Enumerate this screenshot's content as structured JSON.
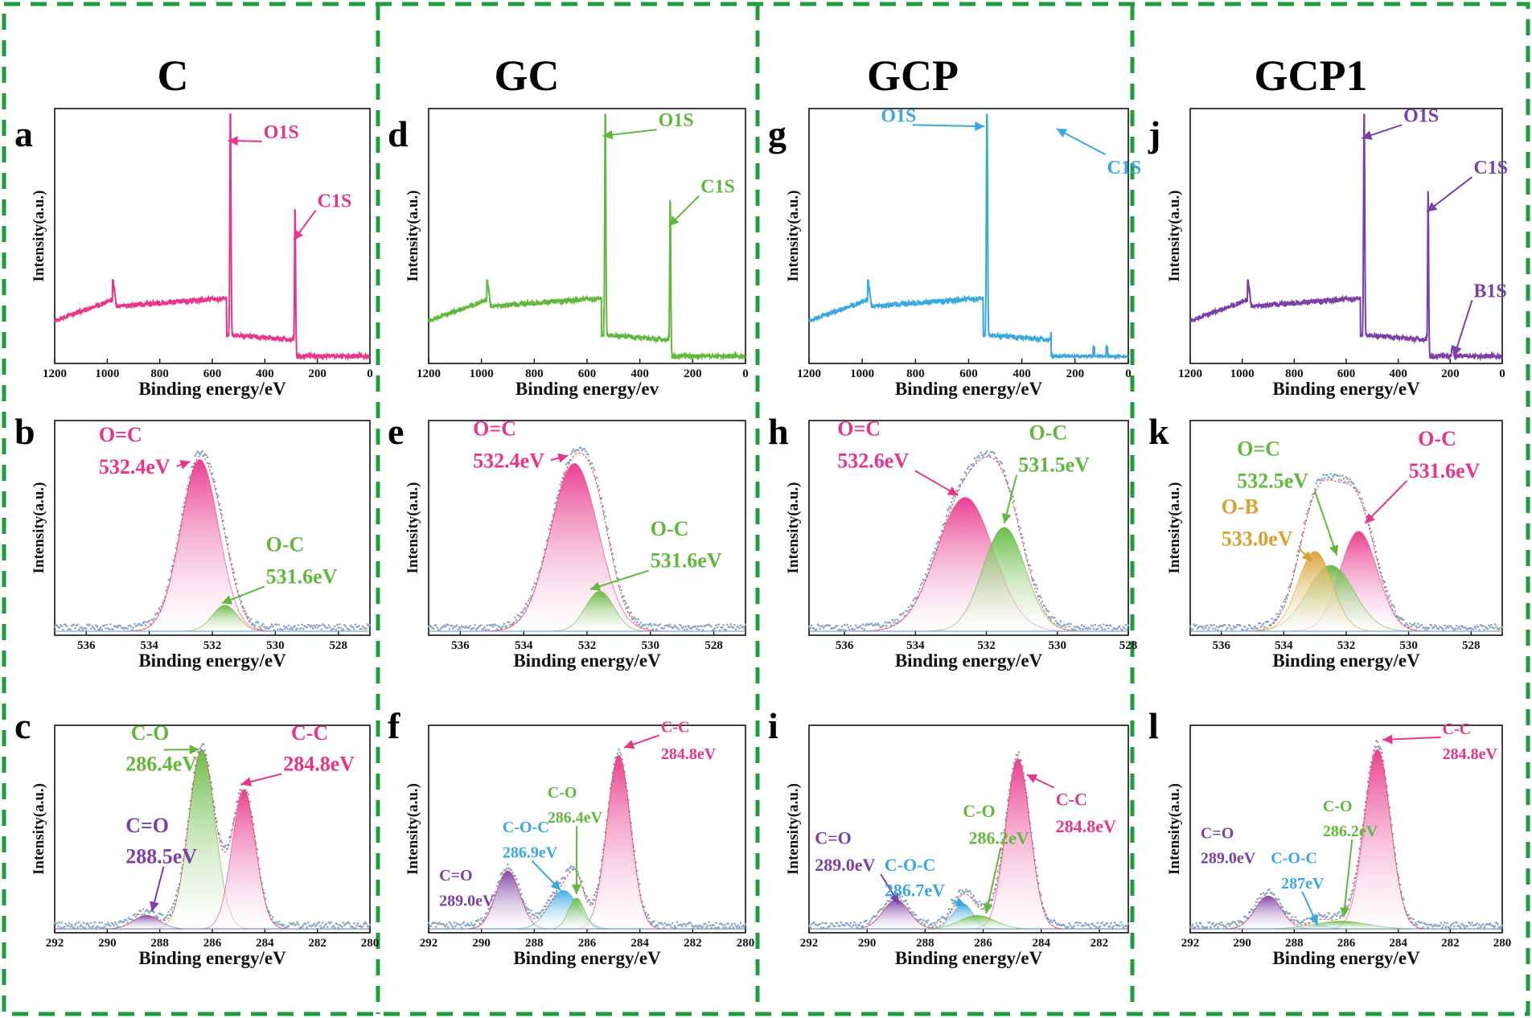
{
  "columns": [
    {
      "title": "C"
    },
    {
      "title": "GC"
    },
    {
      "title": "GCP"
    },
    {
      "title": "GCP1"
    }
  ],
  "colors": {
    "pink": "#e8358a",
    "green": "#62b83c",
    "blue": "#3aa8e0",
    "purple": "#7b3fa6",
    "orange": "#d9a032",
    "frame": "#1e9d3c",
    "exp": "#88a7c9"
  },
  "chart_data": [
    {
      "panel": "a",
      "type": "line",
      "region": "survey",
      "title": "",
      "xlabel": "Binding energy/eV",
      "ylabel": "Intensity(a.u.)",
      "xlim": [
        1200,
        0
      ],
      "xticks": [
        1200,
        1000,
        800,
        600,
        400,
        200,
        0
      ],
      "line_color": "pink",
      "peaks": [
        {
          "name": "O1S",
          "x": 531
        },
        {
          "name": "C1S",
          "x": 285
        }
      ],
      "labels": [
        {
          "text": "O1S",
          "color": "pink",
          "x": 405,
          "y": 0.95,
          "tx": 540,
          "ty": 0.94,
          "size": 24
        },
        {
          "text": "C1S",
          "color": "pink",
          "x": 200,
          "y": 0.66,
          "tx": 290,
          "ty": 0.52,
          "size": 24
        }
      ]
    },
    {
      "panel": "b",
      "type": "area",
      "region": "O",
      "title": "",
      "xlabel": "Binding energy/eV",
      "ylabel": "Intensity(a.u.)",
      "xlim": [
        537,
        527
      ],
      "xticks": [
        536,
        534,
        532,
        530,
        528
      ],
      "components": [
        {
          "name": "O=C",
          "center": 532.4,
          "height": 0.86,
          "width": 0.6,
          "color": "pink"
        },
        {
          "name": "O-C",
          "center": 531.6,
          "height": 0.13,
          "width": 0.4,
          "color": "green"
        }
      ],
      "labels": [
        {
          "text": "O=C",
          "color": "pink",
          "x": 535.6,
          "y": 0.97,
          "size": 26
        },
        {
          "text": "532.4eV",
          "color": "pink",
          "x": 535.6,
          "y": 0.81,
          "tx": 532.7,
          "ty": 0.87,
          "size": 26
        },
        {
          "text": "O-C",
          "color": "green",
          "x": 530.3,
          "y": 0.42,
          "size": 26
        },
        {
          "text": "531.6eV",
          "color": "green",
          "x": 530.3,
          "y": 0.26,
          "tx": 531.7,
          "ty": 0.16,
          "size": 26
        }
      ]
    },
    {
      "panel": "c",
      "type": "area",
      "region": "C",
      "title": "",
      "xlabel": "Binding energy/eV",
      "ylabel": "Intensity(a.u.)",
      "xlim": [
        292,
        280
      ],
      "xticks": [
        292,
        290,
        288,
        286,
        284,
        282,
        280
      ],
      "components": [
        {
          "name": "C-O",
          "center": 286.4,
          "height": 0.93,
          "width": 0.5,
          "color": "green"
        },
        {
          "name": "C-C",
          "center": 284.8,
          "height": 0.72,
          "width": 0.45,
          "color": "pink"
        },
        {
          "name": "C=O",
          "center": 288.5,
          "height": 0.07,
          "width": 0.5,
          "color": "purple"
        }
      ],
      "labels": [
        {
          "text": "C-O",
          "color": "green",
          "x": 289.1,
          "y": 1.0,
          "size": 26
        },
        {
          "text": "286.4eV",
          "color": "green",
          "x": 289.3,
          "y": 0.84,
          "tx": 286.5,
          "ty": 0.95,
          "size": 26
        },
        {
          "text": "C-C",
          "color": "pink",
          "x": 283.0,
          "y": 1.0,
          "size": 26
        },
        {
          "text": "284.8eV",
          "color": "pink",
          "x": 283.3,
          "y": 0.84,
          "tx": 284.9,
          "ty": 0.77,
          "size": 26
        },
        {
          "text": "C=O",
          "color": "purple",
          "x": 289.3,
          "y": 0.52,
          "size": 26
        },
        {
          "text": "288.5eV",
          "color": "purple",
          "x": 289.3,
          "y": 0.36,
          "tx": 288.3,
          "ty": 0.11,
          "size": 26
        }
      ]
    },
    {
      "panel": "d",
      "type": "line",
      "region": "survey",
      "title": "",
      "xlabel": "Binding energy/ev",
      "ylabel": "Intensity(a.u.)",
      "xlim": [
        1200,
        0
      ],
      "xticks": [
        1200,
        1000,
        800,
        600,
        400,
        200,
        0
      ],
      "line_color": "green",
      "peaks": [
        {
          "name": "O1S",
          "x": 531
        },
        {
          "name": "C1S",
          "x": 285
        }
      ],
      "labels": [
        {
          "text": "O1S",
          "color": "green",
          "x": 330,
          "y": 1.0,
          "tx": 540,
          "ty": 0.96,
          "size": 24
        },
        {
          "text": "C1S",
          "color": "green",
          "x": 170,
          "y": 0.72,
          "tx": 290,
          "ty": 0.58,
          "size": 24
        }
      ]
    },
    {
      "panel": "e",
      "type": "area",
      "region": "O",
      "title": "",
      "xlabel": "Binding energy/eV",
      "ylabel": "Intensity(a.u.)",
      "xlim": [
        537,
        527
      ],
      "xticks": [
        536,
        534,
        532,
        530,
        528
      ],
      "components": [
        {
          "name": "O=C",
          "center": 532.4,
          "height": 0.84,
          "width": 0.75,
          "color": "pink"
        },
        {
          "name": "O-C",
          "center": 531.6,
          "height": 0.2,
          "width": 0.45,
          "color": "green"
        }
      ],
      "labels": [
        {
          "text": "O=C",
          "color": "pink",
          "x": 535.6,
          "y": 1.0,
          "size": 26
        },
        {
          "text": "532.4eV",
          "color": "pink",
          "x": 535.6,
          "y": 0.84,
          "tx": 532.6,
          "ty": 0.9,
          "size": 26
        },
        {
          "text": "O-C",
          "color": "green",
          "x": 530.0,
          "y": 0.5,
          "size": 26
        },
        {
          "text": "531.6eV",
          "color": "green",
          "x": 530.0,
          "y": 0.34,
          "tx": 531.9,
          "ty": 0.23,
          "size": 26
        }
      ]
    },
    {
      "panel": "f",
      "type": "area",
      "region": "C",
      "title": "",
      "xlabel": "Binding energy/eV",
      "ylabel": "Intensity(a.u.)",
      "xlim": [
        292,
        280
      ],
      "xticks": [
        292,
        290,
        288,
        286,
        284,
        282,
        280
      ],
      "components": [
        {
          "name": "C-C",
          "center": 284.8,
          "height": 0.9,
          "width": 0.45,
          "color": "pink"
        },
        {
          "name": "C=O",
          "center": 289.0,
          "height": 0.3,
          "width": 0.45,
          "color": "purple"
        },
        {
          "name": "C-O-C",
          "center": 286.9,
          "height": 0.2,
          "width": 0.55,
          "color": "blue"
        },
        {
          "name": "C-O",
          "center": 286.4,
          "height": 0.16,
          "width": 0.3,
          "color": "green"
        }
      ],
      "labels": [
        {
          "text": "C-C",
          "color": "pink",
          "x": 283.2,
          "y": 1.04,
          "tx": 284.6,
          "ty": 0.96,
          "size": 20
        },
        {
          "text": "284.8eV",
          "color": "pink",
          "x": 283.2,
          "y": 0.9,
          "size": 20
        },
        {
          "text": "C-O",
          "color": "green",
          "x": 287.5,
          "y": 0.7,
          "size": 20
        },
        {
          "text": "286.4eV",
          "color": "green",
          "x": 287.5,
          "y": 0.57,
          "tx": 286.4,
          "ty": 0.2,
          "size": 20
        },
        {
          "text": "C-O-C",
          "color": "blue",
          "x": 289.2,
          "y": 0.52,
          "size": 20
        },
        {
          "text": "286.9eV",
          "color": "blue",
          "x": 289.2,
          "y": 0.39,
          "tx": 287.0,
          "ty": 0.22,
          "size": 20
        },
        {
          "text": "C=O",
          "color": "purple",
          "x": 291.6,
          "y": 0.27,
          "size": 20
        },
        {
          "text": "289.0eV",
          "color": "purple",
          "x": 291.6,
          "y": 0.14,
          "size": 20
        }
      ]
    },
    {
      "panel": "g",
      "type": "line",
      "region": "survey",
      "title": "",
      "xlabel": "Binding energy/eV",
      "ylabel": "Intensity(a.u.)",
      "xlim": [
        1200,
        0
      ],
      "xticks": [
        1200,
        1000,
        800,
        600,
        400,
        200,
        0
      ],
      "line_color": "blue",
      "peaks": [
        {
          "name": "O1S",
          "x": 531
        },
        {
          "name": "C1S",
          "x": 285
        }
      ],
      "labels": [
        {
          "text": "O1S",
          "color": "blue",
          "x": 930,
          "y": 1.02,
          "tx": 540,
          "ty": 1.0,
          "size": 24
        },
        {
          "text": "C1S",
          "color": "blue",
          "x": 80,
          "y": 0.8,
          "tx": 270,
          "ty": 0.99,
          "size": 24
        }
      ]
    },
    {
      "panel": "h",
      "type": "area",
      "region": "O",
      "title": "",
      "xlabel": "Binding energy/eV",
      "ylabel": "Intensity(a.u.)",
      "xlim": [
        537,
        528
      ],
      "xticks": [
        536,
        534,
        532,
        530,
        528
      ],
      "components": [
        {
          "name": "O=C",
          "center": 532.6,
          "height": 0.67,
          "width": 0.8,
          "color": "pink"
        },
        {
          "name": "O-C",
          "center": 531.5,
          "height": 0.52,
          "width": 0.6,
          "color": "green"
        }
      ],
      "labels": [
        {
          "text": "O=C",
          "color": "pink",
          "x": 536.2,
          "y": 1.0,
          "size": 26
        },
        {
          "text": "532.6eV",
          "color": "pink",
          "x": 536.2,
          "y": 0.84,
          "tx": 532.8,
          "ty": 0.7,
          "size": 26
        },
        {
          "text": "O-C",
          "color": "green",
          "x": 530.8,
          "y": 0.98,
          "size": 26
        },
        {
          "text": "531.5eV",
          "color": "green",
          "x": 531.1,
          "y": 0.82,
          "tx": 531.5,
          "ty": 0.56,
          "size": 26
        }
      ]
    },
    {
      "panel": "i",
      "type": "area",
      "region": "C",
      "title": "",
      "xlabel": "Binding energy/eV",
      "ylabel": "Intensity(a.u.)",
      "xlim": [
        292,
        281
      ],
      "xticks": [
        292,
        290,
        288,
        286,
        284,
        282
      ],
      "components": [
        {
          "name": "C-C",
          "center": 284.8,
          "height": 0.88,
          "width": 0.42,
          "color": "pink"
        },
        {
          "name": "C=O",
          "center": 289.0,
          "height": 0.15,
          "width": 0.45,
          "color": "purple"
        },
        {
          "name": "C-O-C",
          "center": 286.7,
          "height": 0.13,
          "width": 0.35,
          "color": "blue"
        },
        {
          "name": "C-O",
          "center": 286.2,
          "height": 0.07,
          "width": 0.6,
          "color": "green"
        }
      ],
      "labels": [
        {
          "text": "C-C",
          "color": "pink",
          "x": 283.5,
          "y": 0.66,
          "tx": 284.5,
          "ty": 0.82,
          "size": 22
        },
        {
          "text": "284.8eV",
          "color": "pink",
          "x": 283.5,
          "y": 0.52,
          "size": 22
        },
        {
          "text": "C-O",
          "color": "green",
          "x": 286.7,
          "y": 0.6,
          "size": 22
        },
        {
          "text": "286.2eV",
          "color": "green",
          "x": 286.5,
          "y": 0.46,
          "tx": 285.9,
          "ty": 0.1,
          "size": 22
        },
        {
          "text": "C=O",
          "color": "purple",
          "x": 291.8,
          "y": 0.46,
          "size": 22
        },
        {
          "text": "289.0eV",
          "color": "purple",
          "x": 291.8,
          "y": 0.32,
          "tx": 288.9,
          "ty": 0.15,
          "size": 22
        },
        {
          "text": "C-O-C",
          "color": "blue",
          "x": 289.4,
          "y": 0.32,
          "size": 22
        },
        {
          "text": "286.7eV",
          "color": "blue",
          "x": 289.4,
          "y": 0.19,
          "tx": 286.6,
          "ty": 0.14,
          "size": 22
        }
      ]
    },
    {
      "panel": "j",
      "type": "line",
      "region": "survey",
      "title": "",
      "xlabel": "Binding energy/eV",
      "ylabel": "Intensity(a.u.)",
      "xlim": [
        1200,
        0
      ],
      "xticks": [
        1200,
        1000,
        800,
        600,
        400,
        200,
        0
      ],
      "line_color": "purple",
      "peaks": [
        {
          "name": "O1S",
          "x": 531
        },
        {
          "name": "C1S",
          "x": 285
        },
        {
          "name": "B1S",
          "x": 191
        }
      ],
      "labels": [
        {
          "text": "O1S",
          "color": "purple",
          "x": 380,
          "y": 1.02,
          "tx": 540,
          "ty": 0.95,
          "size": 24
        },
        {
          "text": "C1S",
          "color": "purple",
          "x": 110,
          "y": 0.8,
          "tx": 290,
          "ty": 0.64,
          "size": 24
        },
        {
          "text": "B1S",
          "color": "purple",
          "x": 110,
          "y": 0.28,
          "tx": 185,
          "ty": 0.03,
          "size": 24
        }
      ]
    },
    {
      "panel": "k",
      "type": "area",
      "region": "O",
      "title": "",
      "xlabel": "Binding energy/eV",
      "ylabel": "Intensity(a.u.)",
      "xlim": [
        537,
        527
      ],
      "xticks": [
        536,
        534,
        532,
        530,
        528
      ],
      "components": [
        {
          "name": "O-C",
          "center": 531.6,
          "height": 0.5,
          "width": 0.6,
          "color": "pink"
        },
        {
          "name": "O=C",
          "center": 532.5,
          "height": 0.33,
          "width": 0.75,
          "color": "green"
        },
        {
          "name": "O-B",
          "center": 533.0,
          "height": 0.4,
          "width": 0.55,
          "color": "orange"
        }
      ],
      "labels": [
        {
          "text": "O=C",
          "color": "green",
          "x": 535.5,
          "y": 0.9,
          "size": 26
        },
        {
          "text": "532.5eV",
          "color": "green",
          "x": 535.5,
          "y": 0.74,
          "tx": 532.3,
          "ty": 0.4,
          "size": 26
        },
        {
          "text": "O-C",
          "color": "pink",
          "x": 529.7,
          "y": 0.95,
          "size": 26
        },
        {
          "text": "531.6eV",
          "color": "pink",
          "x": 530.0,
          "y": 0.79,
          "tx": 531.4,
          "ty": 0.56,
          "size": 26
        },
        {
          "text": "O-B",
          "color": "orange",
          "x": 536.0,
          "y": 0.61,
          "size": 26
        },
        {
          "text": "533.0eV",
          "color": "orange",
          "x": 536.0,
          "y": 0.45,
          "tx": 533.1,
          "ty": 0.37,
          "size": 26
        }
      ]
    },
    {
      "panel": "l",
      "type": "area",
      "region": "C",
      "title": "",
      "xlabel": "Binding energy/eV",
      "ylabel": "Intensity(a.u.)",
      "xlim": [
        292,
        280
      ],
      "xticks": [
        292,
        290,
        288,
        286,
        284,
        282,
        280
      ],
      "components": [
        {
          "name": "C-C",
          "center": 284.8,
          "height": 0.93,
          "width": 0.5,
          "color": "pink"
        },
        {
          "name": "C=O",
          "center": 289.0,
          "height": 0.17,
          "width": 0.5,
          "color": "purple"
        },
        {
          "name": "C-O-C",
          "center": 287.0,
          "height": 0.02,
          "width": 0.3,
          "color": "blue"
        },
        {
          "name": "C-O",
          "center": 286.2,
          "height": 0.04,
          "width": 1.0,
          "color": "green"
        }
      ],
      "labels": [
        {
          "text": "C-C",
          "color": "pink",
          "x": 282.3,
          "y": 1.03,
          "tx": 284.6,
          "ty": 1.0,
          "size": 20
        },
        {
          "text": "284.8eV",
          "color": "pink",
          "x": 282.3,
          "y": 0.9,
          "size": 20
        },
        {
          "text": "C-O",
          "color": "green",
          "x": 286.9,
          "y": 0.63,
          "size": 20
        },
        {
          "text": "286.2eV",
          "color": "green",
          "x": 286.9,
          "y": 0.5,
          "tx": 286.1,
          "ty": 0.08,
          "size": 20
        },
        {
          "text": "C=O",
          "color": "purple",
          "x": 291.6,
          "y": 0.49,
          "size": 20
        },
        {
          "text": "289.0eV",
          "color": "purple",
          "x": 291.6,
          "y": 0.36,
          "size": 20
        },
        {
          "text": "C-O-C",
          "color": "blue",
          "x": 288.9,
          "y": 0.36,
          "size": 20
        },
        {
          "text": "287eV",
          "color": "blue",
          "x": 288.5,
          "y": 0.23,
          "tx": 287.1,
          "ty": 0.04,
          "size": 20
        }
      ]
    }
  ]
}
